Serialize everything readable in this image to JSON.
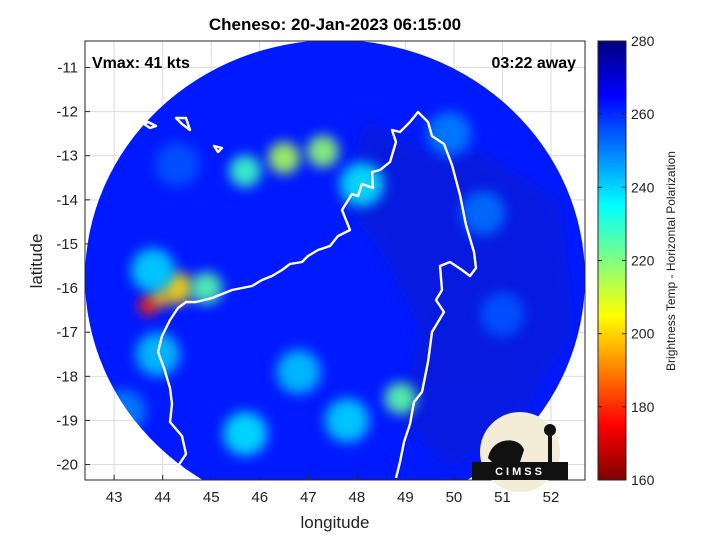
{
  "chart_data": {
    "type": "heatmap",
    "title": "Cheneso: 20-Jan-2023 06:15:00",
    "xlabel": "longitude",
    "ylabel": "latitude",
    "xlim": [
      42.4,
      52.7
    ],
    "ylim": [
      -20.35,
      -10.4
    ],
    "xticks": [
      "43",
      "44",
      "45",
      "46",
      "47",
      "48",
      "49",
      "50",
      "51",
      "52"
    ],
    "yticks": [
      "-11",
      "-12",
      "-13",
      "-14",
      "-15",
      "-16",
      "-17",
      "-18",
      "-19",
      "-20"
    ],
    "grid": true,
    "annotations": {
      "vmax": "Vmax: 41 kts",
      "distance": "03:22 away"
    },
    "colorbar": {
      "label": "Brightness Temp - Horizontal Polarization",
      "range": [
        160,
        280
      ],
      "ticks": [
        "280",
        "260",
        "240",
        "220",
        "200",
        "180",
        "160"
      ],
      "colors": [
        "#7f0000",
        "#ff0000",
        "#ff8000",
        "#ffff00",
        "#80ff80",
        "#00ffff",
        "#0080ff",
        "#0000ff",
        "#00007f"
      ]
    },
    "background_value": 262,
    "features": [
      {
        "lon": 43.7,
        "lat": -16.4,
        "value": 178
      },
      {
        "lon": 43.95,
        "lat": -16.2,
        "value": 195
      },
      {
        "lon": 44.3,
        "lat": -16.0,
        "value": 200
      },
      {
        "lon": 43.8,
        "lat": -15.6,
        "value": 240
      },
      {
        "lon": 44.9,
        "lat": -16.0,
        "value": 225
      },
      {
        "lon": 43.9,
        "lat": -17.5,
        "value": 242
      },
      {
        "lon": 46.5,
        "lat": -13.05,
        "value": 215
      },
      {
        "lon": 47.3,
        "lat": -12.9,
        "value": 218
      },
      {
        "lon": 45.7,
        "lat": -13.35,
        "value": 228
      },
      {
        "lon": 48.1,
        "lat": -13.65,
        "value": 238
      },
      {
        "lon": 48.9,
        "lat": -18.5,
        "value": 224
      },
      {
        "lon": 46.8,
        "lat": -17.9,
        "value": 242
      },
      {
        "lon": 45.7,
        "lat": -19.3,
        "value": 238
      },
      {
        "lon": 47.8,
        "lat": -19.0,
        "value": 240
      },
      {
        "lon": 51.0,
        "lat": -16.6,
        "value": 255
      },
      {
        "lon": 44.3,
        "lat": -13.2,
        "value": 255
      },
      {
        "lon": 49.9,
        "lat": -12.5,
        "value": 250
      },
      {
        "lon": 50.6,
        "lat": -14.3,
        "value": 252
      },
      {
        "lon": 43.2,
        "lat": -18.8,
        "value": 250
      }
    ]
  },
  "logo": {
    "text": "CIMSS"
  }
}
